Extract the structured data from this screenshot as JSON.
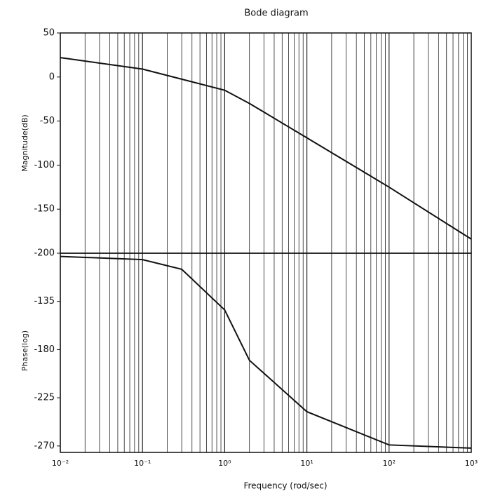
{
  "chart_data": [
    {
      "type": "line",
      "title": "Bode diagram",
      "ylabel": "Magnitude(dB)",
      "xscale": "log",
      "grid": true,
      "x": [
        0.01,
        0.1,
        1,
        2,
        10,
        100,
        1000
      ],
      "series": [
        {
          "name": "Magnitude",
          "color": "#111111",
          "values": [
            22,
            9,
            -15,
            -30,
            -69,
            -125,
            -184
          ]
        }
      ],
      "xlim": [
        0.01,
        1000
      ],
      "ylim": [
        -200,
        50
      ],
      "yticks": [
        50,
        0,
        -50,
        -100,
        -150,
        -200
      ]
    },
    {
      "type": "line",
      "xlabel": "Frequency (rod/sec)",
      "ylabel": "Phase(log)",
      "xscale": "log",
      "grid": true,
      "x": [
        0.01,
        0.1,
        0.3,
        1,
        2,
        10,
        100,
        1000
      ],
      "series": [
        {
          "name": "Phase",
          "color": "#111111",
          "values": [
            -93,
            -96,
            -105,
            -143,
            -190,
            -238,
            -269,
            -272
          ]
        }
      ],
      "xlim": [
        0.01,
        1000
      ],
      "ylim": [
        -276,
        -90
      ],
      "yticks": [
        -135,
        -180,
        -225,
        -270
      ],
      "xticks": [
        {
          "value": 0.01,
          "label": "10⁻²"
        },
        {
          "value": 0.1,
          "label": "10⁻¹"
        },
        {
          "value": 1,
          "label": "10⁰"
        },
        {
          "value": 10,
          "label": "10¹"
        },
        {
          "value": 100,
          "label": "10²"
        },
        {
          "value": 1000,
          "label": "10³"
        }
      ]
    }
  ]
}
